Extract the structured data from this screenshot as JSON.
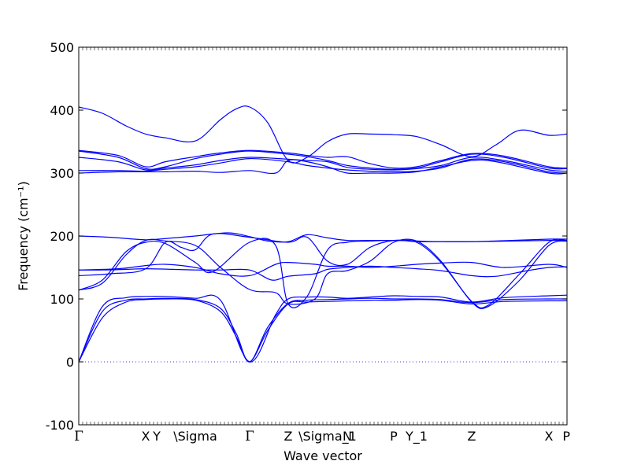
{
  "chart_data": {
    "type": "line",
    "xlabel": "Wave vector",
    "ylabel": "Frequency (cm⁻¹)",
    "ylim": [
      -100,
      500
    ],
    "yticks": [
      -100,
      0,
      100,
      200,
      300,
      400,
      500
    ],
    "xlim": [
      0,
      6.2
    ],
    "grid": false,
    "line_color": "#0000ff",
    "zero_line_color": "#0000ff",
    "high_symmetry_points": [
      {
        "label": "Γ",
        "x": 0.0
      },
      {
        "label": "X",
        "x": 0.85
      },
      {
        "label": "Y",
        "x": 0.99
      },
      {
        "label": "\\Sigma",
        "x": 1.48
      },
      {
        "label": "Γ",
        "x": 2.17
      },
      {
        "label": "Z",
        "x": 2.66
      },
      {
        "label": "\\Sigma_1",
        "x": 3.16
      },
      {
        "label": "N",
        "x": 3.41
      },
      {
        "label": "P",
        "x": 4.0
      },
      {
        "label": "Y_1",
        "x": 4.29
      },
      {
        "label": "Z",
        "x": 4.99
      },
      {
        "label": "X",
        "x": 5.97
      },
      {
        "label": "P",
        "x": 6.2
      }
    ],
    "series": [
      {
        "x": [
          0,
          0.3,
          0.6,
          0.85,
          1.1,
          1.48,
          1.8,
          2.0,
          2.17,
          2.4,
          2.66,
          2.9,
          3.16,
          3.41,
          3.7,
          4.0,
          4.29,
          4.6,
          4.99,
          5.4,
          5.97,
          6.2
        ],
        "values": [
          0,
          70,
          95,
          99,
          100,
          98,
          80,
          40,
          0,
          50,
          92,
          95,
          96,
          97,
          98,
          98,
          99,
          98,
          92,
          96,
          97,
          97
        ]
      },
      {
        "x": [
          0,
          0.3,
          0.6,
          0.85,
          1.1,
          1.48,
          1.8,
          2.0,
          2.17,
          2.4,
          2.66,
          2.9,
          3.16,
          3.41,
          3.7,
          4.0,
          4.29,
          4.6,
          4.99,
          5.4,
          5.97,
          6.2
        ],
        "values": [
          0,
          80,
          98,
          100,
          101,
          99,
          85,
          45,
          0,
          55,
          93,
          98,
          99,
          100,
          101,
          100,
          100,
          99,
          94,
          99,
          100,
          100
        ]
      },
      {
        "x": [
          0,
          0.3,
          0.6,
          0.85,
          1.1,
          1.48,
          1.8,
          2.17,
          2.5,
          2.66,
          2.9,
          3.16,
          3.41,
          3.7,
          4.0,
          4.29,
          4.6,
          4.99,
          5.4,
          5.97,
          6.2
        ],
        "values": [
          0,
          88,
          102,
          104,
          104,
          101,
          98,
          0,
          75,
          100,
          103,
          103,
          101,
          103,
          105,
          104,
          103,
          95,
          102,
          105,
          106
        ]
      },
      {
        "x": [
          0,
          0.3,
          0.6,
          0.85,
          1.1,
          1.48,
          1.8,
          2.17,
          2.5,
          2.66,
          3.0,
          3.16,
          3.41,
          3.7,
          4.0,
          4.29,
          4.6,
          4.99,
          5.2,
          5.6,
          5.97,
          6.2
        ],
        "values": [
          114,
          125,
          170,
          193,
          192,
          185,
          150,
          115,
          110,
          92,
          100,
          140,
          145,
          160,
          190,
          192,
          160,
          95,
          88,
          130,
          185,
          192
        ]
      },
      {
        "x": [
          0,
          0.3,
          0.6,
          0.85,
          1.1,
          1.48,
          1.7,
          2.17,
          2.5,
          2.66,
          2.9,
          3.16,
          3.41,
          3.7,
          4.0,
          4.29,
          4.6,
          4.99,
          5.2,
          5.6,
          5.97,
          6.2
        ],
        "values": [
          114,
          130,
          175,
          190,
          188,
          158,
          143,
          190,
          185,
          92,
          104,
          178,
          190,
          192,
          193,
          190,
          158,
          96,
          90,
          140,
          190,
          193
        ]
      },
      {
        "x": [
          0,
          0.4,
          0.85,
          1.1,
          1.3,
          1.48,
          1.7,
          2.17,
          2.66,
          2.9,
          3.16,
          3.41,
          3.7,
          4.0,
          4.29,
          4.6,
          4.99,
          5.5,
          5.97,
          6.2
        ],
        "values": [
          137,
          140,
          148,
          190,
          182,
          178,
          203,
          198,
          190,
          198,
          160,
          155,
          182,
          193,
          191,
          191,
          191,
          192,
          193,
          193
        ]
      },
      {
        "x": [
          0,
          0.3,
          0.6,
          0.85,
          1.2,
          1.48,
          1.8,
          2.17,
          2.45,
          2.66,
          3.0,
          3.16,
          3.41,
          3.7,
          4.0,
          4.29,
          4.6,
          4.99,
          5.3,
          5.7,
          5.97,
          6.2
        ],
        "values": [
          146,
          146,
          147,
          148,
          147,
          146,
          146,
          146,
          130,
          136,
          140,
          147,
          150,
          152,
          150,
          148,
          145,
          137,
          136,
          145,
          150,
          151
        ]
      },
      {
        "x": [
          0,
          0.5,
          0.85,
          1.1,
          1.48,
          1.8,
          2.17,
          2.5,
          2.66,
          3.0,
          3.16,
          3.41,
          3.7,
          4.0,
          4.29,
          4.6,
          4.99,
          5.4,
          5.97,
          6.2
        ],
        "values": [
          146,
          148,
          153,
          155,
          150,
          140,
          137,
          155,
          158,
          155,
          152,
          152,
          150,
          152,
          155,
          157,
          158,
          150,
          155,
          150
        ]
      },
      {
        "x": [
          0,
          0.4,
          0.85,
          1.2,
          1.48,
          1.9,
          2.17,
          2.4,
          2.66,
          2.9,
          3.16,
          3.41,
          3.7,
          4.0,
          4.29,
          4.6,
          4.99,
          5.5,
          5.97,
          6.2
        ],
        "values": [
          200,
          198,
          194,
          197,
          200,
          205,
          199,
          192,
          191,
          202,
          197,
          193,
          193,
          193,
          192,
          191,
          191,
          193,
          195,
          195
        ]
      },
      {
        "x": [
          0,
          0.5,
          0.85,
          1.1,
          1.48,
          1.8,
          2.17,
          2.5,
          2.66,
          2.9,
          3.16,
          3.41,
          3.7,
          4.0,
          4.29,
          4.6,
          4.99,
          5.3,
          5.97,
          6.2
        ],
        "values": [
          300,
          302,
          302,
          302,
          303,
          301,
          304,
          300,
          320,
          318,
          310,
          300,
          300,
          300,
          302,
          310,
          320,
          318,
          300,
          300
        ]
      },
      {
        "x": [
          0,
          0.5,
          0.85,
          1.1,
          1.48,
          1.8,
          2.17,
          2.66,
          2.9,
          3.16,
          3.41,
          3.7,
          4.0,
          4.29,
          4.6,
          4.99,
          5.4,
          5.97,
          6.2
        ],
        "values": [
          304,
          304,
          303,
          306,
          310,
          316,
          323,
          318,
          312,
          308,
          305,
          303,
          302,
          303,
          308,
          322,
          318,
          302,
          300
        ]
      },
      {
        "x": [
          0,
          0.5,
          0.85,
          1.1,
          1.48,
          1.8,
          2.17,
          2.66,
          2.9,
          3.16,
          3.41,
          3.7,
          4.0,
          4.29,
          4.6,
          4.99,
          5.4,
          5.97,
          6.2
        ],
        "values": [
          325,
          318,
          305,
          308,
          313,
          320,
          325,
          322,
          320,
          318,
          309,
          306,
          305,
          307,
          312,
          325,
          320,
          305,
          303
        ]
      },
      {
        "x": [
          0,
          0.5,
          0.85,
          1.1,
          1.48,
          1.8,
          2.17,
          2.66,
          2.9,
          3.16,
          3.41,
          3.7,
          4.0,
          4.29,
          4.6,
          4.99,
          5.4,
          5.97,
          6.2
        ],
        "values": [
          335,
          325,
          307,
          310,
          323,
          330,
          335,
          330,
          326,
          320,
          312,
          308,
          306,
          308,
          318,
          330,
          325,
          308,
          307
        ]
      },
      {
        "x": [
          0,
          0.5,
          0.85,
          1.1,
          1.48,
          1.8,
          2.17,
          2.66,
          2.9,
          3.16,
          3.41,
          3.7,
          4.0,
          4.29,
          4.6,
          4.99,
          5.4,
          5.97,
          6.2
        ],
        "values": [
          336,
          328,
          310,
          318,
          326,
          332,
          336,
          332,
          328,
          325,
          326,
          315,
          308,
          310,
          320,
          331,
          327,
          310,
          308
        ]
      },
      {
        "x": [
          0,
          0.3,
          0.6,
          0.85,
          1.1,
          1.48,
          1.8,
          2.0,
          2.17,
          2.4,
          2.66,
          2.9,
          3.16,
          3.41,
          3.7,
          4.0,
          4.29,
          4.6,
          4.99,
          5.3,
          5.6,
          5.97,
          6.2
        ],
        "values": [
          405,
          395,
          375,
          362,
          356,
          351,
          385,
          402,
          405,
          380,
          320,
          325,
          350,
          362,
          362,
          361,
          358,
          345,
          326,
          345,
          368,
          360,
          362
        ]
      }
    ]
  }
}
